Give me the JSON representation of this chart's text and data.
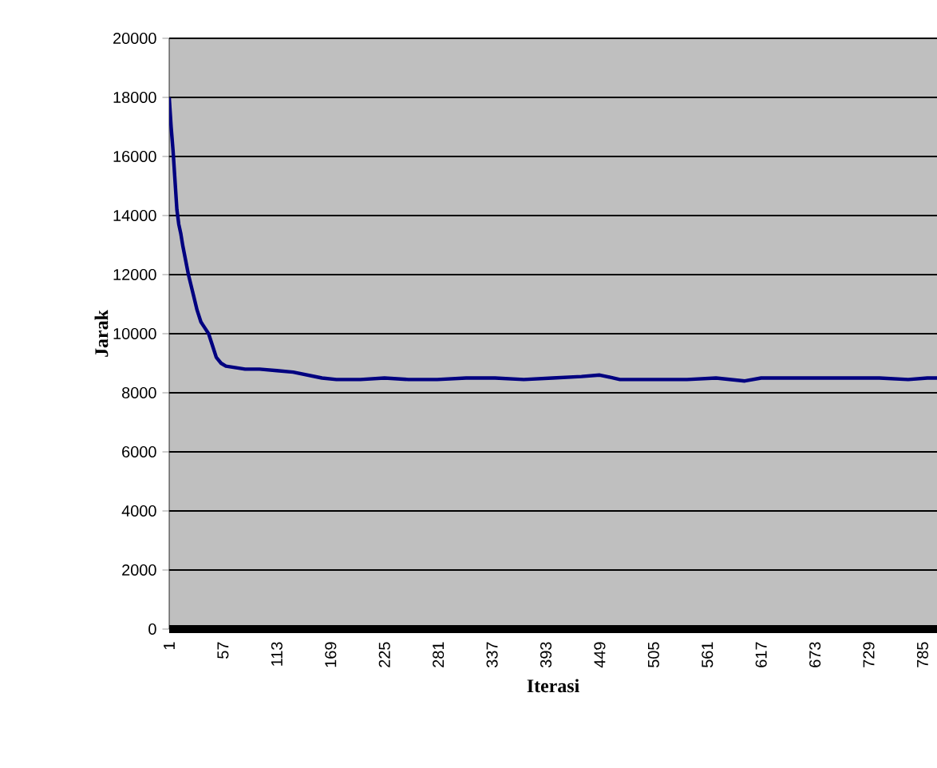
{
  "chart_data": {
    "type": "line",
    "xlabel": "Iterasi",
    "ylabel": "Jarak",
    "x": [
      1,
      3,
      5,
      7,
      9,
      11,
      13,
      15,
      18,
      21,
      24,
      27,
      30,
      34,
      38,
      42,
      46,
      50,
      55,
      60,
      70,
      80,
      95,
      113,
      130,
      145,
      160,
      175,
      200,
      225,
      250,
      280,
      310,
      340,
      370,
      400,
      430,
      449,
      470,
      505,
      540,
      570,
      600,
      617,
      650,
      680,
      710,
      740,
      770,
      790,
      800
    ],
    "series": [
      {
        "color": "#000080",
        "values": [
          18000,
          17000,
          16200,
          15200,
          14200,
          13700,
          13400,
          13000,
          12500,
          12000,
          11600,
          11200,
          10800,
          10400,
          10200,
          10000,
          9600,
          9200,
          9000,
          8900,
          8850,
          8800,
          8800,
          8750,
          8700,
          8600,
          8500,
          8450,
          8450,
          8500,
          8450,
          8450,
          8500,
          8500,
          8450,
          8500,
          8550,
          8600,
          8450,
          8450,
          8450,
          8500,
          8400,
          8500,
          8500,
          8500,
          8500,
          8500,
          8450,
          8500,
          8500
        ]
      }
    ],
    "xlim": [
      1,
      800
    ],
    "ylim": [
      0,
      20000
    ],
    "xticks": [
      1,
      57,
      113,
      169,
      225,
      281,
      337,
      393,
      449,
      505,
      561,
      617,
      673,
      729,
      785
    ],
    "yticks": [
      0,
      2000,
      4000,
      6000,
      8000,
      10000,
      12000,
      14000,
      16000,
      18000,
      20000
    ],
    "grid": "y",
    "line_style": "solid"
  }
}
